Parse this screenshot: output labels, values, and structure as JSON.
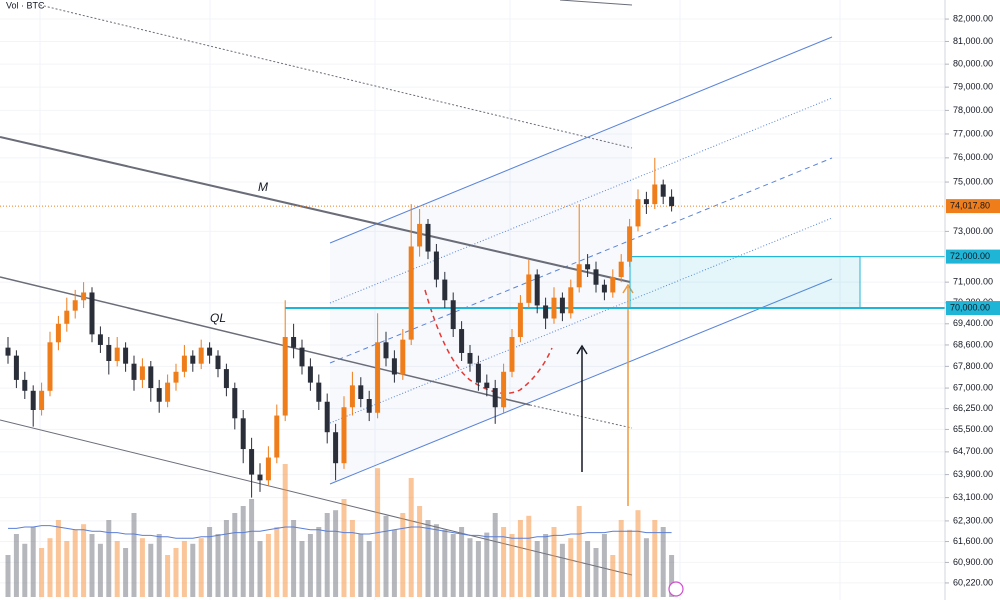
{
  "chart_data": {
    "type": "candlestick",
    "indicator_label": "Vol · BTC",
    "annotations": [
      "M",
      "QL"
    ],
    "log_scale": true,
    "up_color": "#ef7d1a",
    "down_color": "#2a2e39",
    "volume_up_color": "rgba(245,140,50,0.5)",
    "volume_down_color": "rgba(120,123,134,0.55)",
    "volume_ma_color": "#5b7fd6",
    "level_color": "#1fb5d6",
    "ylim": [
      59660,
      82860
    ],
    "yticks": [
      {
        "value": 82000,
        "label": "82,000.00"
      },
      {
        "value": 81000,
        "label": "81,000.00"
      },
      {
        "value": 80000,
        "label": "80,000.00"
      },
      {
        "value": 79000,
        "label": "79,000.00"
      },
      {
        "value": 78000,
        "label": "78,000.00"
      },
      {
        "value": 77000,
        "label": "77,000.00"
      },
      {
        "value": 76000,
        "label": "76,000.00"
      },
      {
        "value": 75000,
        "label": "75,000.00"
      },
      {
        "value": 73000,
        "label": "73,000.00"
      },
      {
        "value": 71000,
        "label": "71,000.00"
      },
      {
        "value": 70200,
        "label": "70,200.00"
      },
      {
        "value": 69400,
        "label": "69,400.00"
      },
      {
        "value": 68600,
        "label": "68,600.00"
      },
      {
        "value": 67800,
        "label": "67,800.00"
      },
      {
        "value": 67000,
        "label": "67,000.00"
      },
      {
        "value": 66250,
        "label": "66,250.00"
      },
      {
        "value": 65500,
        "label": "65,500.00"
      },
      {
        "value": 64700,
        "label": "64,700.00"
      },
      {
        "value": 63900,
        "label": "63,900.00"
      },
      {
        "value": 63100,
        "label": "63,100.00"
      },
      {
        "value": 62300,
        "label": "62,300.00"
      },
      {
        "value": 61600,
        "label": "61,600.00"
      },
      {
        "value": 60900,
        "label": "60,900.00"
      },
      {
        "value": 60220,
        "label": "60,220.00"
      }
    ],
    "levels": [
      {
        "value": 72000,
        "label": "72,000.00"
      },
      {
        "value": 70000,
        "label": "70,000.00"
      }
    ],
    "last_price": {
      "value": 74017.8,
      "label": "74,017.80"
    },
    "candles": [
      [
        68500,
        68900,
        67900,
        68200
      ],
      [
        68200,
        68400,
        67000,
        67300
      ],
      [
        67300,
        67600,
        66600,
        66900
      ],
      [
        66900,
        67100,
        65600,
        66200
      ],
      [
        66200,
        67200,
        66000,
        66900
      ],
      [
        66900,
        69100,
        66700,
        68700
      ],
      [
        68700,
        69700,
        68400,
        69400
      ],
      [
        69400,
        70400,
        69100,
        69900
      ],
      [
        69900,
        70700,
        69600,
        70300
      ],
      [
        70300,
        71000,
        70000,
        70600
      ],
      [
        70600,
        70800,
        68700,
        69000
      ],
      [
        69000,
        69300,
        68300,
        68600
      ],
      [
        68600,
        68900,
        67500,
        68000
      ],
      [
        68000,
        68900,
        67800,
        68500
      ],
      [
        68500,
        68700,
        67600,
        67900
      ],
      [
        67900,
        68200,
        66900,
        67300
      ],
      [
        67300,
        68100,
        67000,
        67800
      ],
      [
        67800,
        68000,
        66500,
        67000
      ],
      [
        67000,
        67300,
        66100,
        66500
      ],
      [
        66500,
        67500,
        66300,
        67200
      ],
      [
        67200,
        67900,
        66900,
        67600
      ],
      [
        67600,
        68600,
        67400,
        68200
      ],
      [
        68200,
        68400,
        67600,
        67900
      ],
      [
        67900,
        68800,
        67700,
        68500
      ],
      [
        68500,
        68700,
        67900,
        68200
      ],
      [
        68200,
        68400,
        67400,
        67700
      ],
      [
        67700,
        67900,
        66700,
        67000
      ],
      [
        67000,
        67200,
        65500,
        65900
      ],
      [
        65900,
        66200,
        64300,
        64800
      ],
      [
        64800,
        65200,
        63100,
        63900
      ],
      [
        63900,
        64300,
        63300,
        63700
      ],
      [
        63700,
        64900,
        63500,
        64500
      ],
      [
        64500,
        66400,
        64300,
        66000
      ],
      [
        66000,
        70300,
        65800,
        68900
      ],
      [
        68900,
        69400,
        68100,
        68500
      ],
      [
        68500,
        68800,
        67500,
        67800
      ],
      [
        67800,
        68100,
        66900,
        67200
      ],
      [
        67200,
        67500,
        66200,
        66500
      ],
      [
        66500,
        66800,
        65000,
        65400
      ],
      [
        65400,
        65700,
        63700,
        64300
      ],
      [
        64300,
        66700,
        64100,
        66300
      ],
      [
        66300,
        67600,
        66000,
        67100
      ],
      [
        67100,
        67400,
        66300,
        66600
      ],
      [
        66600,
        66900,
        65800,
        66100
      ],
      [
        66100,
        69800,
        65900,
        68700
      ],
      [
        68700,
        69100,
        67800,
        68100
      ],
      [
        68100,
        68400,
        67200,
        67500
      ],
      [
        67500,
        69200,
        67300,
        68800
      ],
      [
        68800,
        74100,
        68600,
        72400
      ],
      [
        72400,
        73900,
        72000,
        73300
      ],
      [
        73300,
        73500,
        71900,
        72200
      ],
      [
        72200,
        72500,
        70800,
        71100
      ],
      [
        71100,
        71400,
        70000,
        70300
      ],
      [
        70300,
        70600,
        68900,
        69200
      ],
      [
        69200,
        69500,
        68000,
        68300
      ],
      [
        68300,
        68600,
        67600,
        67900
      ],
      [
        67900,
        68200,
        66900,
        67200
      ],
      [
        67200,
        67500,
        66700,
        67000
      ],
      [
        67000,
        67300,
        65700,
        66300
      ],
      [
        66300,
        67900,
        66100,
        67600
      ],
      [
        67600,
        69200,
        67400,
        68900
      ],
      [
        68900,
        70500,
        68700,
        70200
      ],
      [
        70200,
        71900,
        70000,
        71300
      ],
      [
        71300,
        71500,
        69800,
        70100
      ],
      [
        70100,
        70400,
        69200,
        69600
      ],
      [
        69600,
        70800,
        69400,
        70400
      ],
      [
        70400,
        70600,
        69500,
        69800
      ],
      [
        69800,
        71100,
        69600,
        70800
      ],
      [
        70800,
        74100,
        70600,
        71700
      ],
      [
        71700,
        72100,
        71200,
        71500
      ],
      [
        71500,
        71800,
        70600,
        70900
      ],
      [
        70900,
        71100,
        70300,
        70600
      ],
      [
        70600,
        71500,
        70400,
        71200
      ],
      [
        71200,
        72100,
        71000,
        71800
      ],
      [
        71800,
        73500,
        71600,
        73200
      ],
      [
        73200,
        74700,
        73000,
        74300
      ],
      [
        74300,
        74600,
        73700,
        74100
      ],
      [
        74100,
        76000,
        73900,
        74900
      ],
      [
        74900,
        75100,
        74100,
        74400
      ],
      [
        74400,
        74700,
        73800,
        74017.8
      ]
    ],
    "volume": [
      30,
      45,
      38,
      50,
      35,
      42,
      55,
      40,
      48,
      52,
      45,
      38,
      55,
      40,
      35,
      60,
      42,
      38,
      45,
      30,
      35,
      40,
      38,
      42,
      50,
      45,
      55,
      60,
      65,
      70,
      40,
      45,
      50,
      95,
      55,
      40,
      45,
      50,
      60,
      62,
      70,
      55,
      45,
      40,
      92,
      58,
      48,
      60,
      85,
      65,
      55,
      52,
      48,
      45,
      50,
      42,
      40,
      46,
      60,
      50,
      45,
      55,
      58,
      40,
      45,
      50,
      38,
      42,
      65,
      40,
      35,
      45,
      30,
      55,
      48,
      62,
      42,
      55,
      50,
      30
    ],
    "volume_ma": [
      49,
      49,
      50,
      50,
      51,
      51,
      50,
      49,
      48,
      48,
      47,
      47,
      46,
      46,
      45,
      45,
      44,
      44,
      43,
      43,
      42,
      42,
      42,
      43,
      43,
      44,
      45,
      46,
      46,
      47,
      47,
      48,
      49,
      50,
      50,
      49,
      48,
      48,
      47,
      47,
      46,
      46,
      45,
      45,
      46,
      47,
      48,
      49,
      50,
      50,
      49,
      48,
      47,
      46,
      45,
      44,
      44,
      43,
      43,
      43,
      42,
      42,
      42,
      43,
      43,
      44,
      44,
      45,
      45,
      46,
      46,
      46,
      47,
      47,
      47,
      47,
      46,
      46,
      46,
      46
    ]
  }
}
